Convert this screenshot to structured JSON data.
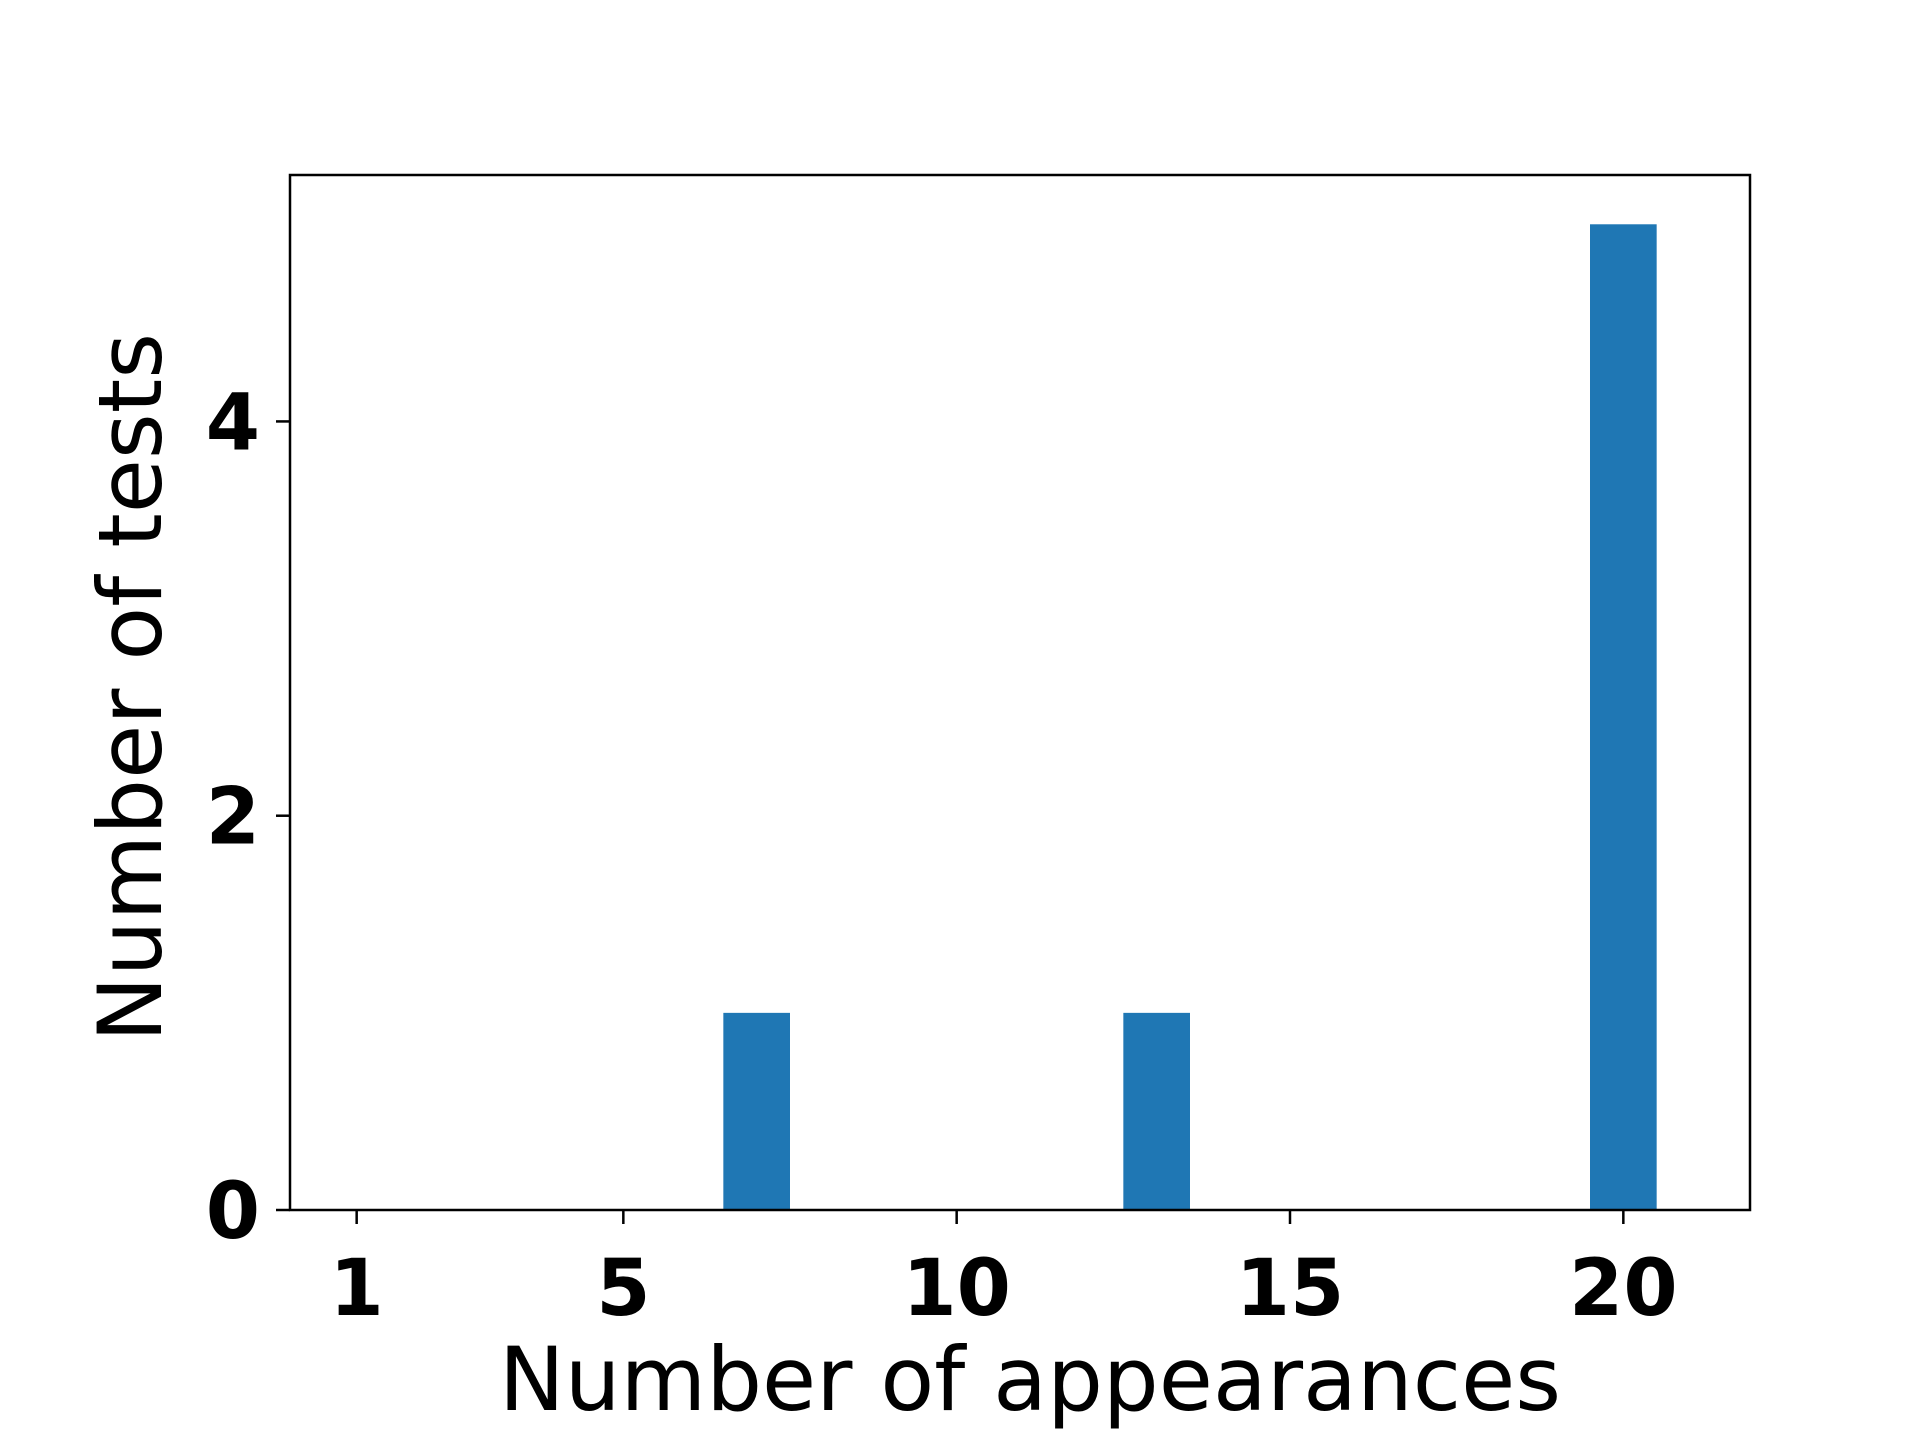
{
  "chart_data": {
    "type": "bar",
    "title": "",
    "xlabel": "Number of appearances",
    "ylabel": "Number of tests",
    "x": [
      7,
      13,
      20
    ],
    "values": [
      1,
      1,
      5
    ],
    "bar_width": 1,
    "xlim": [
      0,
      21.9
    ],
    "ylim": [
      0,
      5.25
    ],
    "xticks": [
      1,
      5,
      10,
      15,
      20
    ],
    "xtick_labels": [
      "1",
      "5",
      "10",
      "15",
      "20"
    ],
    "yticks": [
      0,
      2,
      4
    ],
    "ytick_labels": [
      "0",
      "2",
      "4"
    ],
    "grid": false,
    "legend": "none",
    "bar_color": "#1f77b4"
  }
}
